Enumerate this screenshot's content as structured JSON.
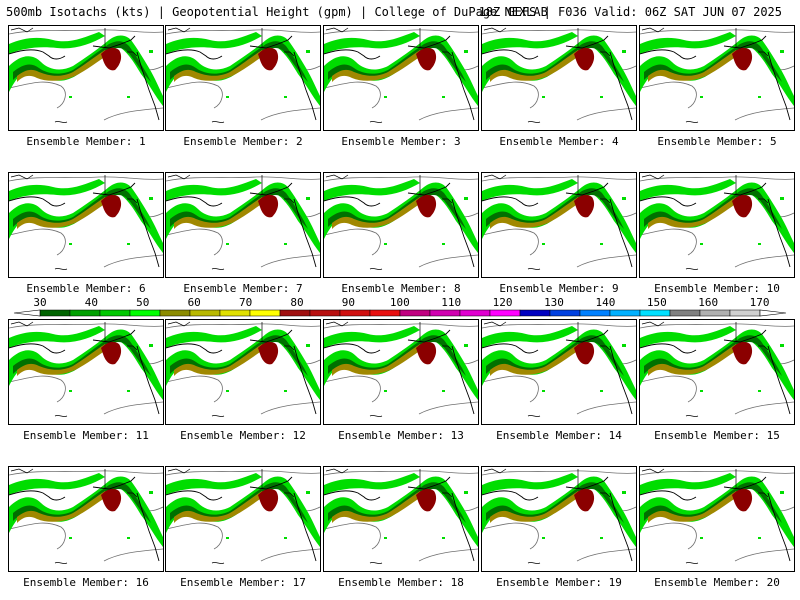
{
  "header": {
    "left": "500mb Isotachs (kts) | Geopotential Height (gpm) | College of DuPage NEXLAB",
    "right": "18Z GEFS | F036 Valid: 06Z SAT JUN 07 2025"
  },
  "members": [
    "Ensemble Member: 1",
    "Ensemble Member: 2",
    "Ensemble Member: 3",
    "Ensemble Member: 4",
    "Ensemble Member: 5",
    "Ensemble Member: 6",
    "Ensemble Member: 7",
    "Ensemble Member: 8",
    "Ensemble Member: 9",
    "Ensemble Member: 10",
    "Ensemble Member: 11",
    "Ensemble Member: 12",
    "Ensemble Member: 13",
    "Ensemble Member: 14",
    "Ensemble Member: 15",
    "Ensemble Member: 16",
    "Ensemble Member: 17",
    "Ensemble Member: 18",
    "Ensemble Member: 19",
    "Ensemble Member: 20"
  ],
  "legend": {
    "ticks": [
      "30",
      "40",
      "50",
      "60",
      "70",
      "80",
      "90",
      "100",
      "110",
      "120",
      "130",
      "140",
      "150",
      "160",
      "170"
    ],
    "colors": [
      "#006400",
      "#00a000",
      "#00c800",
      "#00ff00",
      "#8b8b00",
      "#b8b800",
      "#e0e000",
      "#ffff00",
      "#a01010",
      "#b81010",
      "#d01010",
      "#e81010",
      "#c00080",
      "#d000b0",
      "#e000d0",
      "#ff00ff",
      "#0000c0",
      "#0040e0",
      "#0080ff",
      "#00b0ff",
      "#00e0ff",
      "#808080",
      "#b0b0b0",
      "#d0d0d0"
    ]
  },
  "map_colors": {
    "light_green": "#00dd00",
    "dark_green": "#007000",
    "olive": "#a08800",
    "dark_red": "#8b0000",
    "contour": "#707070",
    "coast": "#000000"
  }
}
